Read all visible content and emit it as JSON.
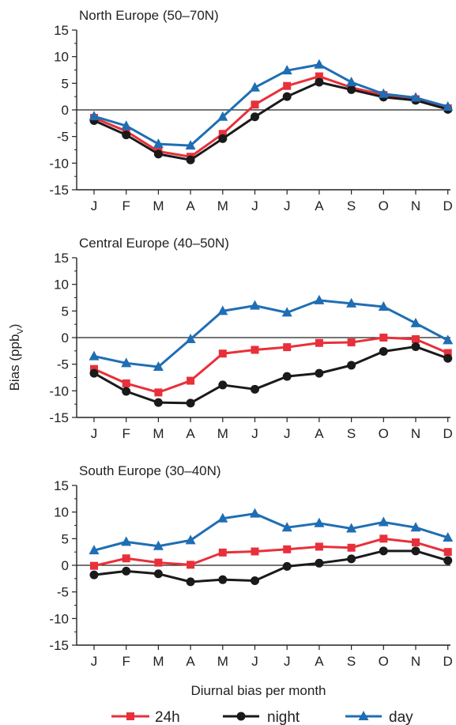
{
  "ylabel_main": "Bias (ppb",
  "ylabel_sub": "V",
  "ylabel_close": ")",
  "xlabel": "Diurnal bias per month",
  "series_styles": [
    {
      "name": "24h",
      "color": "#e8303a",
      "marker": "square"
    },
    {
      "name": "night",
      "color": "#1a1a1a",
      "marker": "circle"
    },
    {
      "name": "day",
      "color": "#1f6eb4",
      "marker": "triangle"
    }
  ],
  "chart_data": [
    {
      "type": "line",
      "title": "North Europe (50–70N)",
      "categories": [
        "J",
        "F",
        "M",
        "A",
        "M",
        "J",
        "J",
        "A",
        "S",
        "O",
        "N",
        "D"
      ],
      "ylim": [
        -15,
        15
      ],
      "yticks": [
        15,
        10,
        5,
        0,
        -5,
        -10,
        -15
      ],
      "series": [
        {
          "name": "24h",
          "values": [
            -1.5,
            -4.0,
            -7.8,
            -8.8,
            -4.5,
            1.0,
            4.5,
            6.3,
            4.2,
            2.8,
            2.0,
            0.3
          ]
        },
        {
          "name": "night",
          "values": [
            -2.0,
            -4.7,
            -8.3,
            -9.4,
            -5.4,
            -1.3,
            2.5,
            5.2,
            3.8,
            2.4,
            1.8,
            0.1
          ]
        },
        {
          "name": "day",
          "values": [
            -1.2,
            -3.0,
            -6.4,
            -6.7,
            -1.3,
            4.2,
            7.4,
            8.5,
            5.2,
            3.0,
            2.3,
            0.6
          ]
        }
      ]
    },
    {
      "type": "line",
      "title": "Central Europe (40–50N)",
      "categories": [
        "J",
        "F",
        "M",
        "A",
        "M",
        "J",
        "J",
        "A",
        "S",
        "O",
        "N",
        "D"
      ],
      "ylim": [
        -15,
        15
      ],
      "yticks": [
        15,
        10,
        5,
        0,
        -5,
        -10,
        -15
      ],
      "series": [
        {
          "name": "24h",
          "values": [
            -5.9,
            -8.6,
            -10.3,
            -8.1,
            -3.0,
            -2.3,
            -1.8,
            -1.0,
            -0.9,
            0.0,
            -0.3,
            -2.9
          ]
        },
        {
          "name": "night",
          "values": [
            -6.7,
            -10.1,
            -12.2,
            -12.3,
            -8.9,
            -9.7,
            -7.3,
            -6.7,
            -5.2,
            -2.6,
            -1.7,
            -3.9
          ]
        },
        {
          "name": "day",
          "values": [
            -3.5,
            -4.8,
            -5.5,
            -0.3,
            5.0,
            6.0,
            4.7,
            7.0,
            6.4,
            5.8,
            2.7,
            -0.5
          ]
        }
      ]
    },
    {
      "type": "line",
      "title": "South Europe (30–40N)",
      "categories": [
        "J",
        "F",
        "M",
        "A",
        "M",
        "J",
        "J",
        "A",
        "S",
        "O",
        "N",
        "D"
      ],
      "ylim": [
        -15,
        15
      ],
      "yticks": [
        15,
        10,
        5,
        0,
        -5,
        -10,
        -15
      ],
      "series": [
        {
          "name": "24h",
          "values": [
            -0.1,
            1.3,
            0.5,
            0.1,
            2.4,
            2.6,
            3.0,
            3.5,
            3.3,
            5.0,
            4.3,
            2.5
          ]
        },
        {
          "name": "night",
          "values": [
            -1.8,
            -1.1,
            -1.6,
            -3.1,
            -2.7,
            -2.9,
            -0.2,
            0.4,
            1.2,
            2.7,
            2.7,
            0.9
          ]
        },
        {
          "name": "day",
          "values": [
            2.8,
            4.4,
            3.6,
            4.7,
            8.8,
            9.7,
            7.1,
            7.9,
            6.9,
            8.1,
            7.1,
            5.2
          ]
        }
      ]
    }
  ]
}
